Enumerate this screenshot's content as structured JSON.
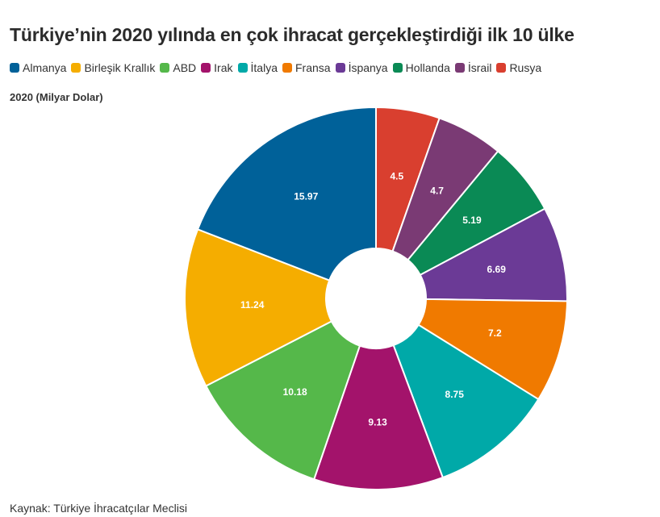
{
  "title": "Türkiye’nin 2020 yılında en çok ihracat gerçekleştirdiği ilk 10 ülke",
  "unit_label": "2020 (Milyar Dolar)",
  "source": "Kaynak: Türkiye İhracatçılar Meclisi",
  "chart_data": {
    "type": "pie",
    "donut": true,
    "title": "Türkiye’nin 2020 yılında en çok ihracat gerçekleştirdiği ilk 10 ülke",
    "subtitle": "2020 (Milyar Dolar)",
    "legend_position": "top-left",
    "slices": [
      {
        "label": "Rusya",
        "value": 4.5,
        "color": "#d93f2f"
      },
      {
        "label": "İsrail",
        "value": 4.7,
        "color": "#7a3a74"
      },
      {
        "label": "Hollanda",
        "value": 5.19,
        "color": "#0a8a55"
      },
      {
        "label": "İspanya",
        "value": 6.69,
        "color": "#6b3a96"
      },
      {
        "label": "Fransa",
        "value": 7.2,
        "color": "#f07a00"
      },
      {
        "label": "İtalya",
        "value": 8.75,
        "color": "#00a9a8"
      },
      {
        "label": "Irak",
        "value": 9.13,
        "color": "#a3136b"
      },
      {
        "label": "ABD",
        "value": 10.18,
        "color": "#55b84a"
      },
      {
        "label": "Birleşik Krallık",
        "value": 11.24,
        "color": "#f5ad00"
      },
      {
        "label": "Almanya",
        "value": 15.97,
        "color": "#006199"
      }
    ],
    "legend_order": [
      "Almanya",
      "Birleşik Krallık",
      "ABD",
      "Irak",
      "İtalya",
      "Fransa",
      "İspanya",
      "Hollanda",
      "İsrail",
      "Rusya"
    ]
  }
}
